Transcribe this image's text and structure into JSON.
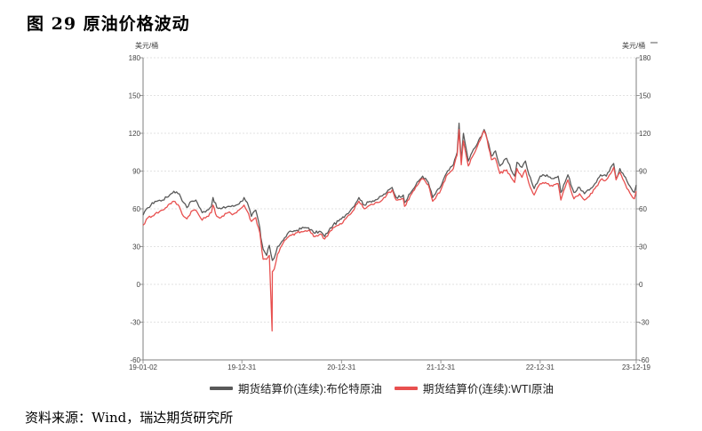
{
  "figure": {
    "title": "图 29 原油价格波动",
    "source": "资料来源：Wind，瑞达期货研究所"
  },
  "chart_data": {
    "type": "line",
    "unit_left": "美元/桶",
    "unit_right": "美元/桶",
    "ylim": [
      -60,
      180
    ],
    "yticks": [
      -60,
      -30,
      0,
      30,
      60,
      90,
      120,
      150,
      180
    ],
    "x_range": [
      "2019-01-02",
      "2023-12-19"
    ],
    "xtick_labels": [
      "19-01-02",
      "19-12-31",
      "20-12-31",
      "21-12-31",
      "22-12-31",
      "23-12-19"
    ],
    "legend_position": "bottom",
    "grid": true,
    "colors": {
      "brent": "#595959",
      "wti": "#e8504f",
      "grid": "#d9d9d9",
      "axis": "#7f7f7f"
    },
    "series": [
      {
        "name": "期货结算价(连续):布伦特原油",
        "points": [
          [
            "2019-01-02",
            55
          ],
          [
            "2019-01-20",
            61
          ],
          [
            "2019-02-15",
            66
          ],
          [
            "2019-03-15",
            67
          ],
          [
            "2019-04-10",
            71
          ],
          [
            "2019-04-25",
            74
          ],
          [
            "2019-05-15",
            72
          ],
          [
            "2019-05-31",
            65
          ],
          [
            "2019-06-12",
            61
          ],
          [
            "2019-06-28",
            66
          ],
          [
            "2019-07-15",
            67
          ],
          [
            "2019-08-07",
            57
          ],
          [
            "2019-08-25",
            59
          ],
          [
            "2019-09-10",
            62
          ],
          [
            "2019-09-16",
            69
          ],
          [
            "2019-09-30",
            61
          ],
          [
            "2019-10-15",
            60
          ],
          [
            "2019-11-10",
            62
          ],
          [
            "2019-12-01",
            62
          ],
          [
            "2019-12-31",
            66
          ],
          [
            "2020-01-08",
            69
          ],
          [
            "2020-01-20",
            65
          ],
          [
            "2020-02-04",
            54
          ],
          [
            "2020-02-20",
            59
          ],
          [
            "2020-03-06",
            45
          ],
          [
            "2020-03-10",
            37
          ],
          [
            "2020-03-18",
            28
          ],
          [
            "2020-03-31",
            23
          ],
          [
            "2020-04-10",
            31
          ],
          [
            "2020-04-21",
            19
          ],
          [
            "2020-04-28",
            21
          ],
          [
            "2020-05-10",
            30
          ],
          [
            "2020-05-31",
            35
          ],
          [
            "2020-06-15",
            40
          ],
          [
            "2020-06-30",
            42
          ],
          [
            "2020-07-20",
            43
          ],
          [
            "2020-08-15",
            45
          ],
          [
            "2020-09-01",
            45
          ],
          [
            "2020-09-20",
            41
          ],
          [
            "2020-10-15",
            42
          ],
          [
            "2020-10-30",
            38
          ],
          [
            "2020-11-15",
            43
          ],
          [
            "2020-11-30",
            47
          ],
          [
            "2020-12-31",
            52
          ],
          [
            "2021-01-15",
            55
          ],
          [
            "2021-02-10",
            61
          ],
          [
            "2021-03-05",
            69
          ],
          [
            "2021-03-25",
            63
          ],
          [
            "2021-04-15",
            66
          ],
          [
            "2021-05-15",
            68
          ],
          [
            "2021-06-15",
            73
          ],
          [
            "2021-07-05",
            77
          ],
          [
            "2021-07-20",
            69
          ],
          [
            "2021-08-15",
            71
          ],
          [
            "2021-08-20",
            65
          ],
          [
            "2021-09-15",
            74
          ],
          [
            "2021-10-10",
            82
          ],
          [
            "2021-10-25",
            86
          ],
          [
            "2021-11-15",
            81
          ],
          [
            "2021-12-01",
            69
          ],
          [
            "2021-12-31",
            78
          ],
          [
            "2022-01-20",
            88
          ],
          [
            "2022-02-15",
            95
          ],
          [
            "2022-03-01",
            105
          ],
          [
            "2022-03-08",
            128
          ],
          [
            "2022-03-16",
            98
          ],
          [
            "2022-03-24",
            120
          ],
          [
            "2022-04-11",
            98
          ],
          [
            "2022-04-25",
            105
          ],
          [
            "2022-05-15",
            112
          ],
          [
            "2022-06-08",
            123
          ],
          [
            "2022-06-14",
            120
          ],
          [
            "2022-07-05",
            102
          ],
          [
            "2022-07-20",
            106
          ],
          [
            "2022-08-05",
            94
          ],
          [
            "2022-08-30",
            100
          ],
          [
            "2022-09-15",
            91
          ],
          [
            "2022-09-28",
            86
          ],
          [
            "2022-10-07",
            97
          ],
          [
            "2022-10-25",
            93
          ],
          [
            "2022-11-07",
            98
          ],
          [
            "2022-11-20",
            87
          ],
          [
            "2022-12-09",
            76
          ],
          [
            "2022-12-31",
            86
          ],
          [
            "2023-01-25",
            87
          ],
          [
            "2023-02-15",
            84
          ],
          [
            "2023-03-07",
            86
          ],
          [
            "2023-03-17",
            73
          ],
          [
            "2023-04-12",
            87
          ],
          [
            "2023-05-04",
            73
          ],
          [
            "2023-05-25",
            77
          ],
          [
            "2023-06-12",
            72
          ],
          [
            "2023-06-30",
            75
          ],
          [
            "2023-07-20",
            80
          ],
          [
            "2023-08-10",
            87
          ],
          [
            "2023-08-31",
            86
          ],
          [
            "2023-09-27",
            96
          ],
          [
            "2023-10-06",
            84
          ],
          [
            "2023-10-20",
            92
          ],
          [
            "2023-11-15",
            82
          ],
          [
            "2023-12-12",
            73
          ],
          [
            "2023-12-19",
            79
          ]
        ]
      },
      {
        "name": "期货结算价(连续):WTI原油",
        "points": [
          [
            "2019-01-02",
            47
          ],
          [
            "2019-01-20",
            53
          ],
          [
            "2019-02-15",
            56
          ],
          [
            "2019-03-15",
            59
          ],
          [
            "2019-04-10",
            64
          ],
          [
            "2019-04-25",
            66
          ],
          [
            "2019-05-15",
            62
          ],
          [
            "2019-05-31",
            54
          ],
          [
            "2019-06-12",
            52
          ],
          [
            "2019-06-28",
            58
          ],
          [
            "2019-07-15",
            59
          ],
          [
            "2019-08-07",
            51
          ],
          [
            "2019-08-25",
            54
          ],
          [
            "2019-09-10",
            57
          ],
          [
            "2019-09-16",
            63
          ],
          [
            "2019-09-30",
            54
          ],
          [
            "2019-10-15",
            53
          ],
          [
            "2019-11-10",
            57
          ],
          [
            "2019-12-01",
            56
          ],
          [
            "2019-12-31",
            61
          ],
          [
            "2020-01-08",
            63
          ],
          [
            "2020-01-20",
            58
          ],
          [
            "2020-02-04",
            50
          ],
          [
            "2020-02-20",
            53
          ],
          [
            "2020-03-06",
            41
          ],
          [
            "2020-03-10",
            34
          ],
          [
            "2020-03-18",
            20
          ],
          [
            "2020-03-31",
            20
          ],
          [
            "2020-04-10",
            23
          ],
          [
            "2020-04-20",
            -37
          ],
          [
            "2020-04-21",
            10
          ],
          [
            "2020-04-28",
            12
          ],
          [
            "2020-05-10",
            24
          ],
          [
            "2020-05-31",
            33
          ],
          [
            "2020-06-15",
            37
          ],
          [
            "2020-06-30",
            39
          ],
          [
            "2020-07-20",
            41
          ],
          [
            "2020-08-15",
            42
          ],
          [
            "2020-09-01",
            43
          ],
          [
            "2020-09-20",
            38
          ],
          [
            "2020-10-15",
            40
          ],
          [
            "2020-10-30",
            36
          ],
          [
            "2020-11-15",
            41
          ],
          [
            "2020-11-30",
            45
          ],
          [
            "2020-12-31",
            48
          ],
          [
            "2021-01-15",
            52
          ],
          [
            "2021-02-10",
            58
          ],
          [
            "2021-03-05",
            66
          ],
          [
            "2021-03-25",
            60
          ],
          [
            "2021-04-15",
            63
          ],
          [
            "2021-05-15",
            65
          ],
          [
            "2021-06-15",
            71
          ],
          [
            "2021-07-05",
            75
          ],
          [
            "2021-07-20",
            67
          ],
          [
            "2021-08-15",
            68
          ],
          [
            "2021-08-20",
            62
          ],
          [
            "2021-09-15",
            72
          ],
          [
            "2021-10-10",
            80
          ],
          [
            "2021-10-25",
            84
          ],
          [
            "2021-11-15",
            79
          ],
          [
            "2021-12-01",
            66
          ],
          [
            "2021-12-31",
            75
          ],
          [
            "2022-01-20",
            86
          ],
          [
            "2022-02-15",
            92
          ],
          [
            "2022-03-01",
            103
          ],
          [
            "2022-03-08",
            123
          ],
          [
            "2022-03-16",
            95
          ],
          [
            "2022-03-24",
            114
          ],
          [
            "2022-04-11",
            94
          ],
          [
            "2022-04-25",
            101
          ],
          [
            "2022-05-15",
            110
          ],
          [
            "2022-06-08",
            122
          ],
          [
            "2022-06-14",
            119
          ],
          [
            "2022-07-05",
            99
          ],
          [
            "2022-07-20",
            100
          ],
          [
            "2022-08-05",
            88
          ],
          [
            "2022-08-30",
            91
          ],
          [
            "2022-09-15",
            85
          ],
          [
            "2022-09-28",
            81
          ],
          [
            "2022-10-07",
            92
          ],
          [
            "2022-10-25",
            85
          ],
          [
            "2022-11-07",
            91
          ],
          [
            "2022-11-20",
            80
          ],
          [
            "2022-12-09",
            71
          ],
          [
            "2022-12-31",
            80
          ],
          [
            "2023-01-25",
            80
          ],
          [
            "2023-02-15",
            78
          ],
          [
            "2023-03-07",
            80
          ],
          [
            "2023-03-17",
            67
          ],
          [
            "2023-04-12",
            83
          ],
          [
            "2023-05-04",
            68
          ],
          [
            "2023-05-25",
            72
          ],
          [
            "2023-06-12",
            67
          ],
          [
            "2023-06-30",
            70
          ],
          [
            "2023-07-20",
            76
          ],
          [
            "2023-08-10",
            83
          ],
          [
            "2023-08-31",
            83
          ],
          [
            "2023-09-27",
            93
          ],
          [
            "2023-10-06",
            83
          ],
          [
            "2023-10-20",
            89
          ],
          [
            "2023-11-15",
            76
          ],
          [
            "2023-12-12",
            68
          ],
          [
            "2023-12-19",
            74
          ]
        ]
      }
    ]
  }
}
